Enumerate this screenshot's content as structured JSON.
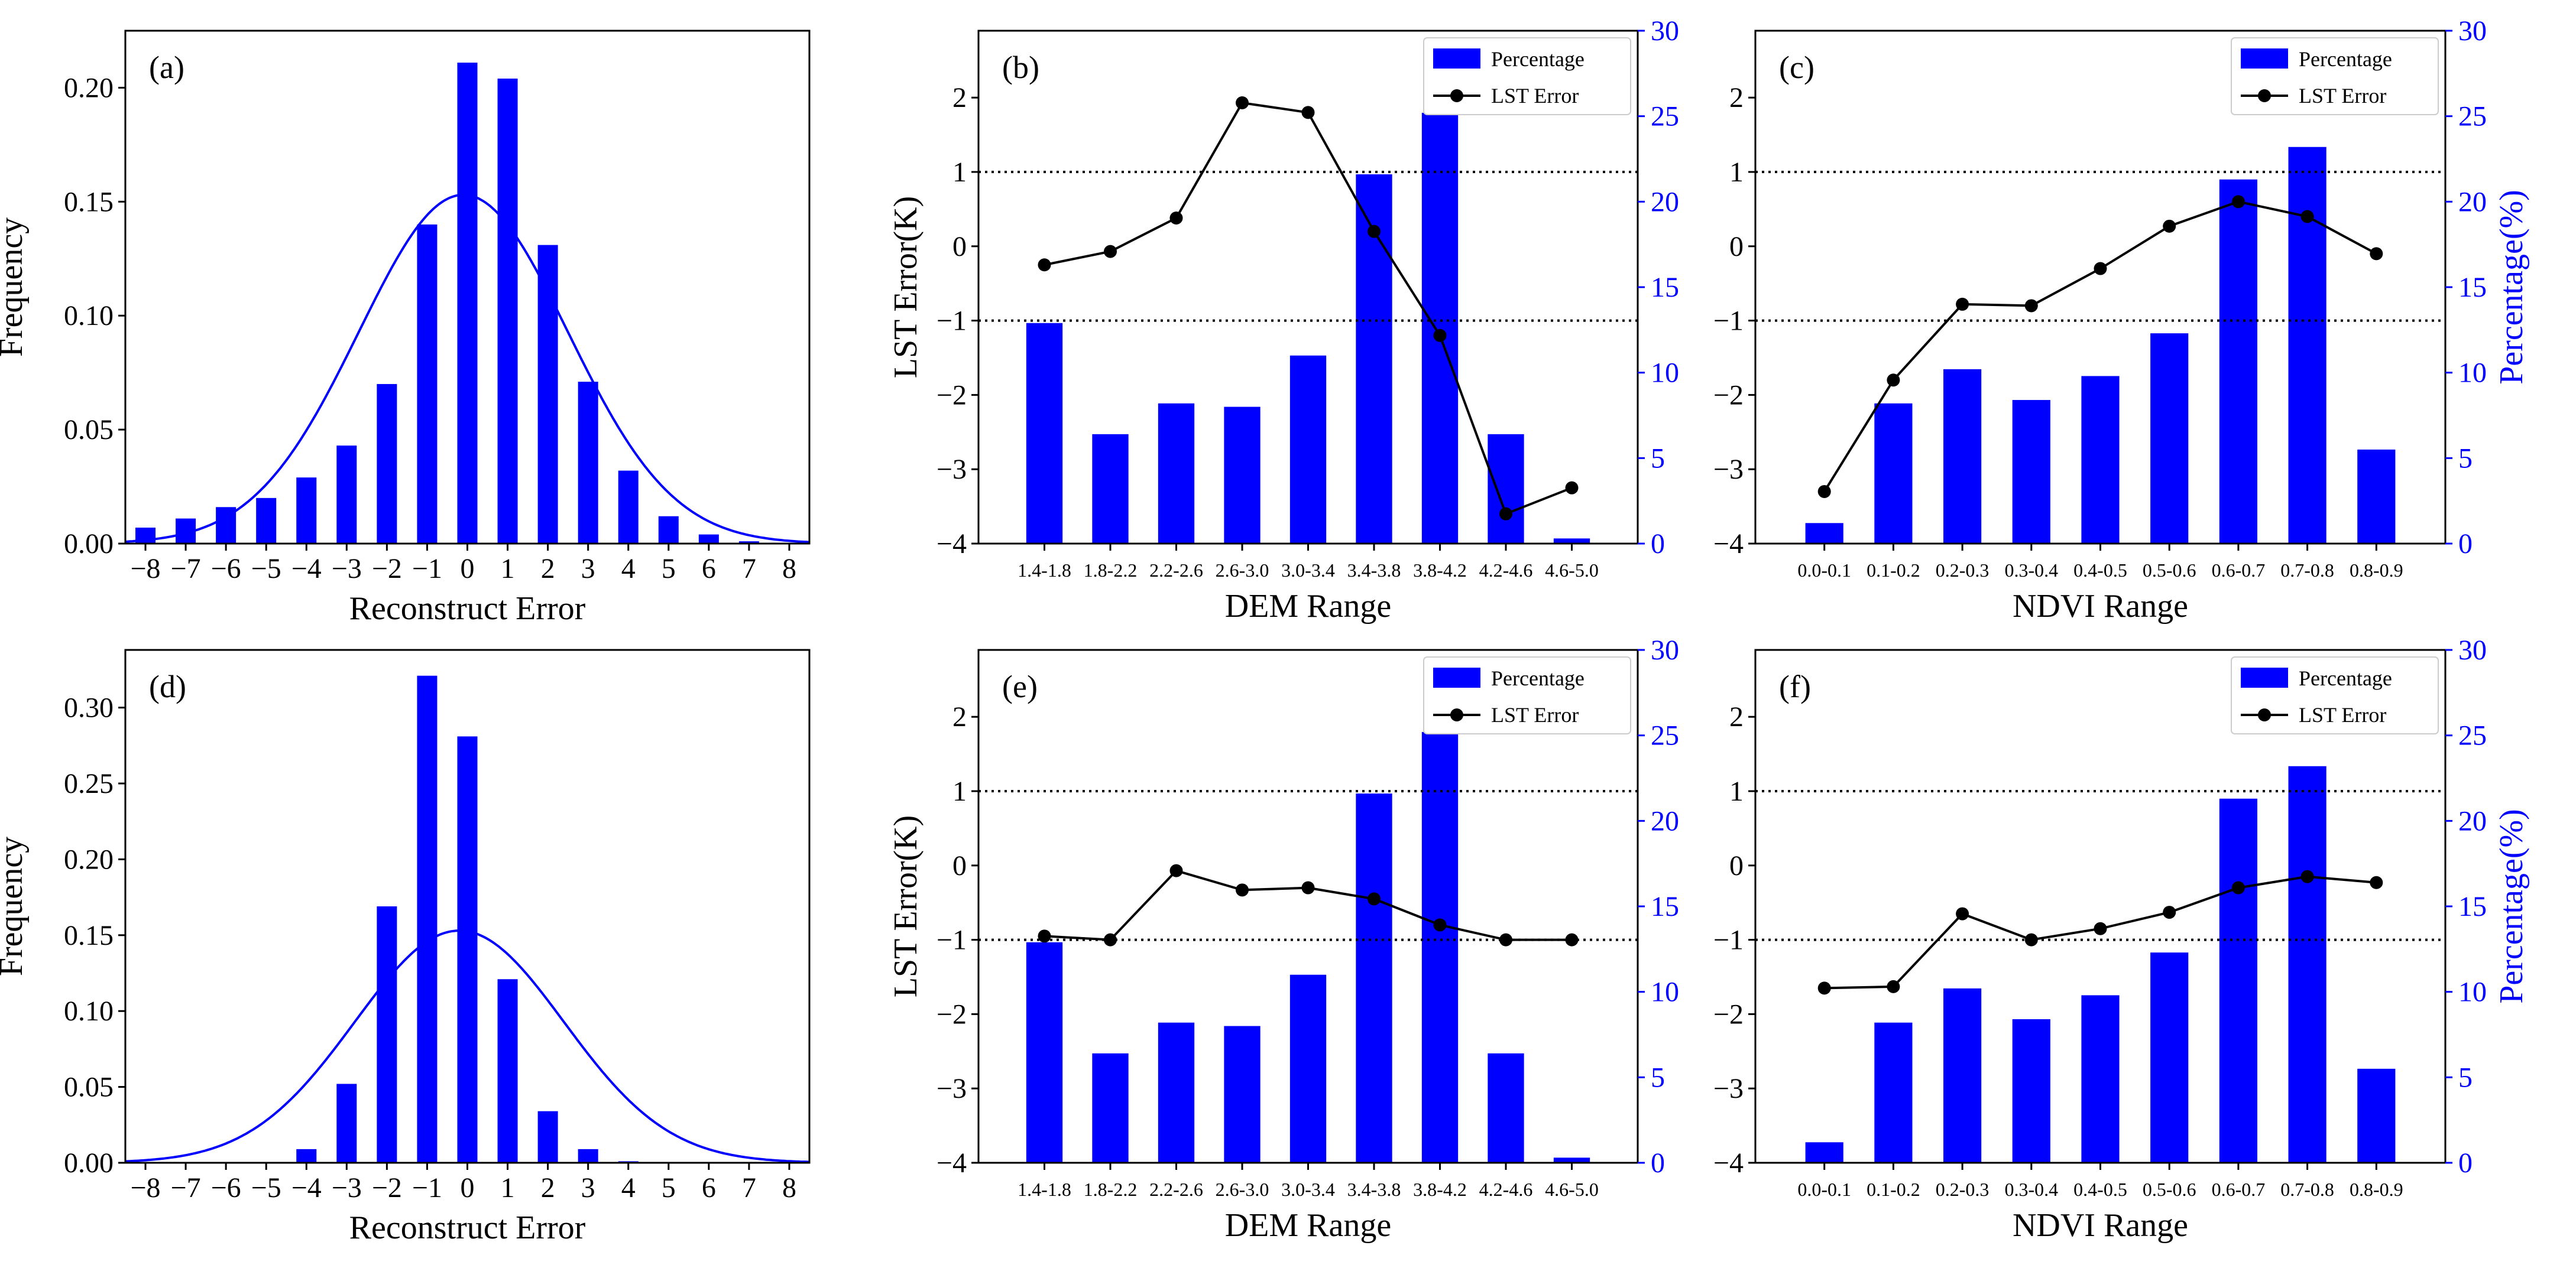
{
  "colors": {
    "bar": "#0000ff",
    "line": "#000000",
    "curve": "#0000ff",
    "right_axis": "#0000ff",
    "reference_line": "#000000"
  },
  "chart_data": [
    {
      "id": "a",
      "type": "bar",
      "panel_label": "(a)",
      "xlabel": "Reconstruct Error",
      "ylabel": "Frequency",
      "x_ticks": [
        "−8",
        "−7",
        "−6",
        "−5",
        "−4",
        "−3",
        "−2",
        "−1",
        "0",
        "1",
        "2",
        "3",
        "4",
        "5",
        "6",
        "7",
        "8"
      ],
      "y_ticks": [
        "0.00",
        "0.05",
        "0.10",
        "0.15",
        "0.20"
      ],
      "xlim": [
        -8.5,
        8.5
      ],
      "ylim": [
        0,
        0.225
      ],
      "x": [
        -8,
        -7,
        -6,
        -5,
        -4,
        -3,
        -2,
        -1,
        0,
        1,
        2,
        3,
        4,
        5,
        6,
        7,
        8
      ],
      "values": [
        0.007,
        0.011,
        0.016,
        0.02,
        0.029,
        0.043,
        0.07,
        0.14,
        0.211,
        0.204,
        0.131,
        0.071,
        0.032,
        0.012,
        0.004,
        0.001,
        0.0
      ],
      "curve": {
        "type": "normal",
        "mean": -0.1,
        "sd": 2.6,
        "peak": 0.153
      },
      "grid": false
    },
    {
      "id": "b",
      "type": "bar+line",
      "panel_label": "(b)",
      "xlabel": "DEM Range",
      "ylabel": "LST Error(K)",
      "y2label": "",
      "categories": [
        "1.4-1.8",
        "1.8-2.2",
        "2.2-2.6",
        "2.6-3.0",
        "3.0-3.4",
        "3.4-3.8",
        "3.8-4.2",
        "4.2-4.6",
        "4.6-5.0"
      ],
      "y_ticks": [
        "−4",
        "−3",
        "−2",
        "−1",
        "0",
        "1",
        "2"
      ],
      "y2_ticks": [
        "0",
        "5",
        "10",
        "15",
        "20",
        "25",
        "30"
      ],
      "ylim": [
        -4,
        2.9
      ],
      "y2lim": [
        0,
        30
      ],
      "series": [
        {
          "name": "Percentage",
          "axis": "right",
          "kind": "bar",
          "values": [
            12.9,
            6.4,
            8.2,
            8.0,
            11.0,
            21.6,
            25.2,
            6.4,
            0.3
          ]
        },
        {
          "name": "LST Error",
          "axis": "left",
          "kind": "line",
          "values": [
            -0.25,
            -0.07,
            0.38,
            1.93,
            1.8,
            0.2,
            -1.2,
            -3.6,
            -3.25
          ]
        }
      ],
      "reference_lines": [
        1,
        -1
      ],
      "legend": "top-right"
    },
    {
      "id": "c",
      "type": "bar+line",
      "panel_label": "(c)",
      "xlabel": "NDVI Range",
      "ylabel": "",
      "y2label": "Percentage(%)",
      "categories": [
        "0.0-0.1",
        "0.1-0.2",
        "0.2-0.3",
        "0.3-0.4",
        "0.4-0.5",
        "0.5-0.6",
        "0.6-0.7",
        "0.7-0.8",
        "0.8-0.9"
      ],
      "y_ticks": [
        "−4",
        "−3",
        "−2",
        "−1",
        "0",
        "1",
        "2"
      ],
      "y2_ticks": [
        "0",
        "5",
        "10",
        "15",
        "20",
        "25",
        "30"
      ],
      "ylim": [
        -4,
        2.9
      ],
      "y2lim": [
        0,
        30
      ],
      "series": [
        {
          "name": "Percentage",
          "axis": "right",
          "kind": "bar",
          "values": [
            1.2,
            8.2,
            10.2,
            8.4,
            9.8,
            12.3,
            21.3,
            23.2,
            5.5
          ]
        },
        {
          "name": "LST Error",
          "axis": "left",
          "kind": "line",
          "values": [
            -3.3,
            -1.8,
            -0.78,
            -0.8,
            -0.3,
            0.27,
            0.6,
            0.4,
            -0.1
          ]
        }
      ],
      "reference_lines": [
        1,
        -1
      ],
      "legend": "top-right"
    },
    {
      "id": "d",
      "type": "bar",
      "panel_label": "(d)",
      "xlabel": "Reconstruct Error",
      "ylabel": "Frequency",
      "x_ticks": [
        "−8",
        "−7",
        "−6",
        "−5",
        "−4",
        "−3",
        "−2",
        "−1",
        "0",
        "1",
        "2",
        "3",
        "4",
        "5",
        "6",
        "7",
        "8"
      ],
      "y_ticks": [
        "0.00",
        "0.05",
        "0.10",
        "0.15",
        "0.20",
        "0.25",
        "0.30"
      ],
      "xlim": [
        -8.5,
        8.5
      ],
      "ylim": [
        0,
        0.338
      ],
      "x": [
        -8,
        -7,
        -6,
        -5,
        -4,
        -3,
        -2,
        -1,
        0,
        1,
        2,
        3,
        4,
        5,
        6,
        7,
        8
      ],
      "values": [
        0,
        0,
        0,
        0,
        0.009,
        0.052,
        0.169,
        0.321,
        0.281,
        0.121,
        0.034,
        0.009,
        0.001,
        0,
        0,
        0,
        0
      ],
      "curve": {
        "type": "normal",
        "mean": -0.2,
        "sd": 2.6,
        "peak": 0.153
      },
      "grid": false
    },
    {
      "id": "e",
      "type": "bar+line",
      "panel_label": "(e)",
      "xlabel": "DEM Range",
      "ylabel": "LST Error(K)",
      "y2label": "",
      "categories": [
        "1.4-1.8",
        "1.8-2.2",
        "2.2-2.6",
        "2.6-3.0",
        "3.0-3.4",
        "3.4-3.8",
        "3.8-4.2",
        "4.2-4.6",
        "4.6-5.0"
      ],
      "y_ticks": [
        "−4",
        "−3",
        "−2",
        "−1",
        "0",
        "1",
        "2"
      ],
      "y2_ticks": [
        "0",
        "5",
        "10",
        "15",
        "20",
        "25",
        "30"
      ],
      "ylim": [
        -4,
        2.9
      ],
      "y2lim": [
        0,
        30
      ],
      "series": [
        {
          "name": "Percentage",
          "axis": "right",
          "kind": "bar",
          "values": [
            12.9,
            6.4,
            8.2,
            8.0,
            11.0,
            21.6,
            25.2,
            6.4,
            0.3
          ]
        },
        {
          "name": "LST Error",
          "axis": "left",
          "kind": "line",
          "values": [
            -0.95,
            -1.0,
            -0.07,
            -0.33,
            -0.3,
            -0.45,
            -0.8,
            -1.0,
            -1.0
          ]
        }
      ],
      "reference_lines": [
        1,
        -1
      ],
      "legend": "top-right"
    },
    {
      "id": "f",
      "type": "bar+line",
      "panel_label": "(f)",
      "xlabel": "NDVI Range",
      "ylabel": "",
      "y2label": "Percentage(%)",
      "categories": [
        "0.0-0.1",
        "0.1-0.2",
        "0.2-0.3",
        "0.3-0.4",
        "0.4-0.5",
        "0.5-0.6",
        "0.6-0.7",
        "0.7-0.8",
        "0.8-0.9"
      ],
      "y_ticks": [
        "−4",
        "−3",
        "−2",
        "−1",
        "0",
        "1",
        "2"
      ],
      "y2_ticks": [
        "0",
        "5",
        "10",
        "15",
        "20",
        "25",
        "30"
      ],
      "ylim": [
        -4,
        2.9
      ],
      "y2lim": [
        0,
        30
      ],
      "series": [
        {
          "name": "Percentage",
          "axis": "right",
          "kind": "bar",
          "values": [
            1.2,
            8.2,
            10.2,
            8.4,
            9.8,
            12.3,
            21.3,
            23.2,
            5.5
          ]
        },
        {
          "name": "LST Error",
          "axis": "left",
          "kind": "line",
          "values": [
            -1.65,
            -1.63,
            -0.65,
            -1.0,
            -0.85,
            -0.63,
            -0.3,
            -0.15,
            -0.23
          ]
        }
      ],
      "reference_lines": [
        1,
        -1
      ],
      "legend": "top-right"
    }
  ]
}
